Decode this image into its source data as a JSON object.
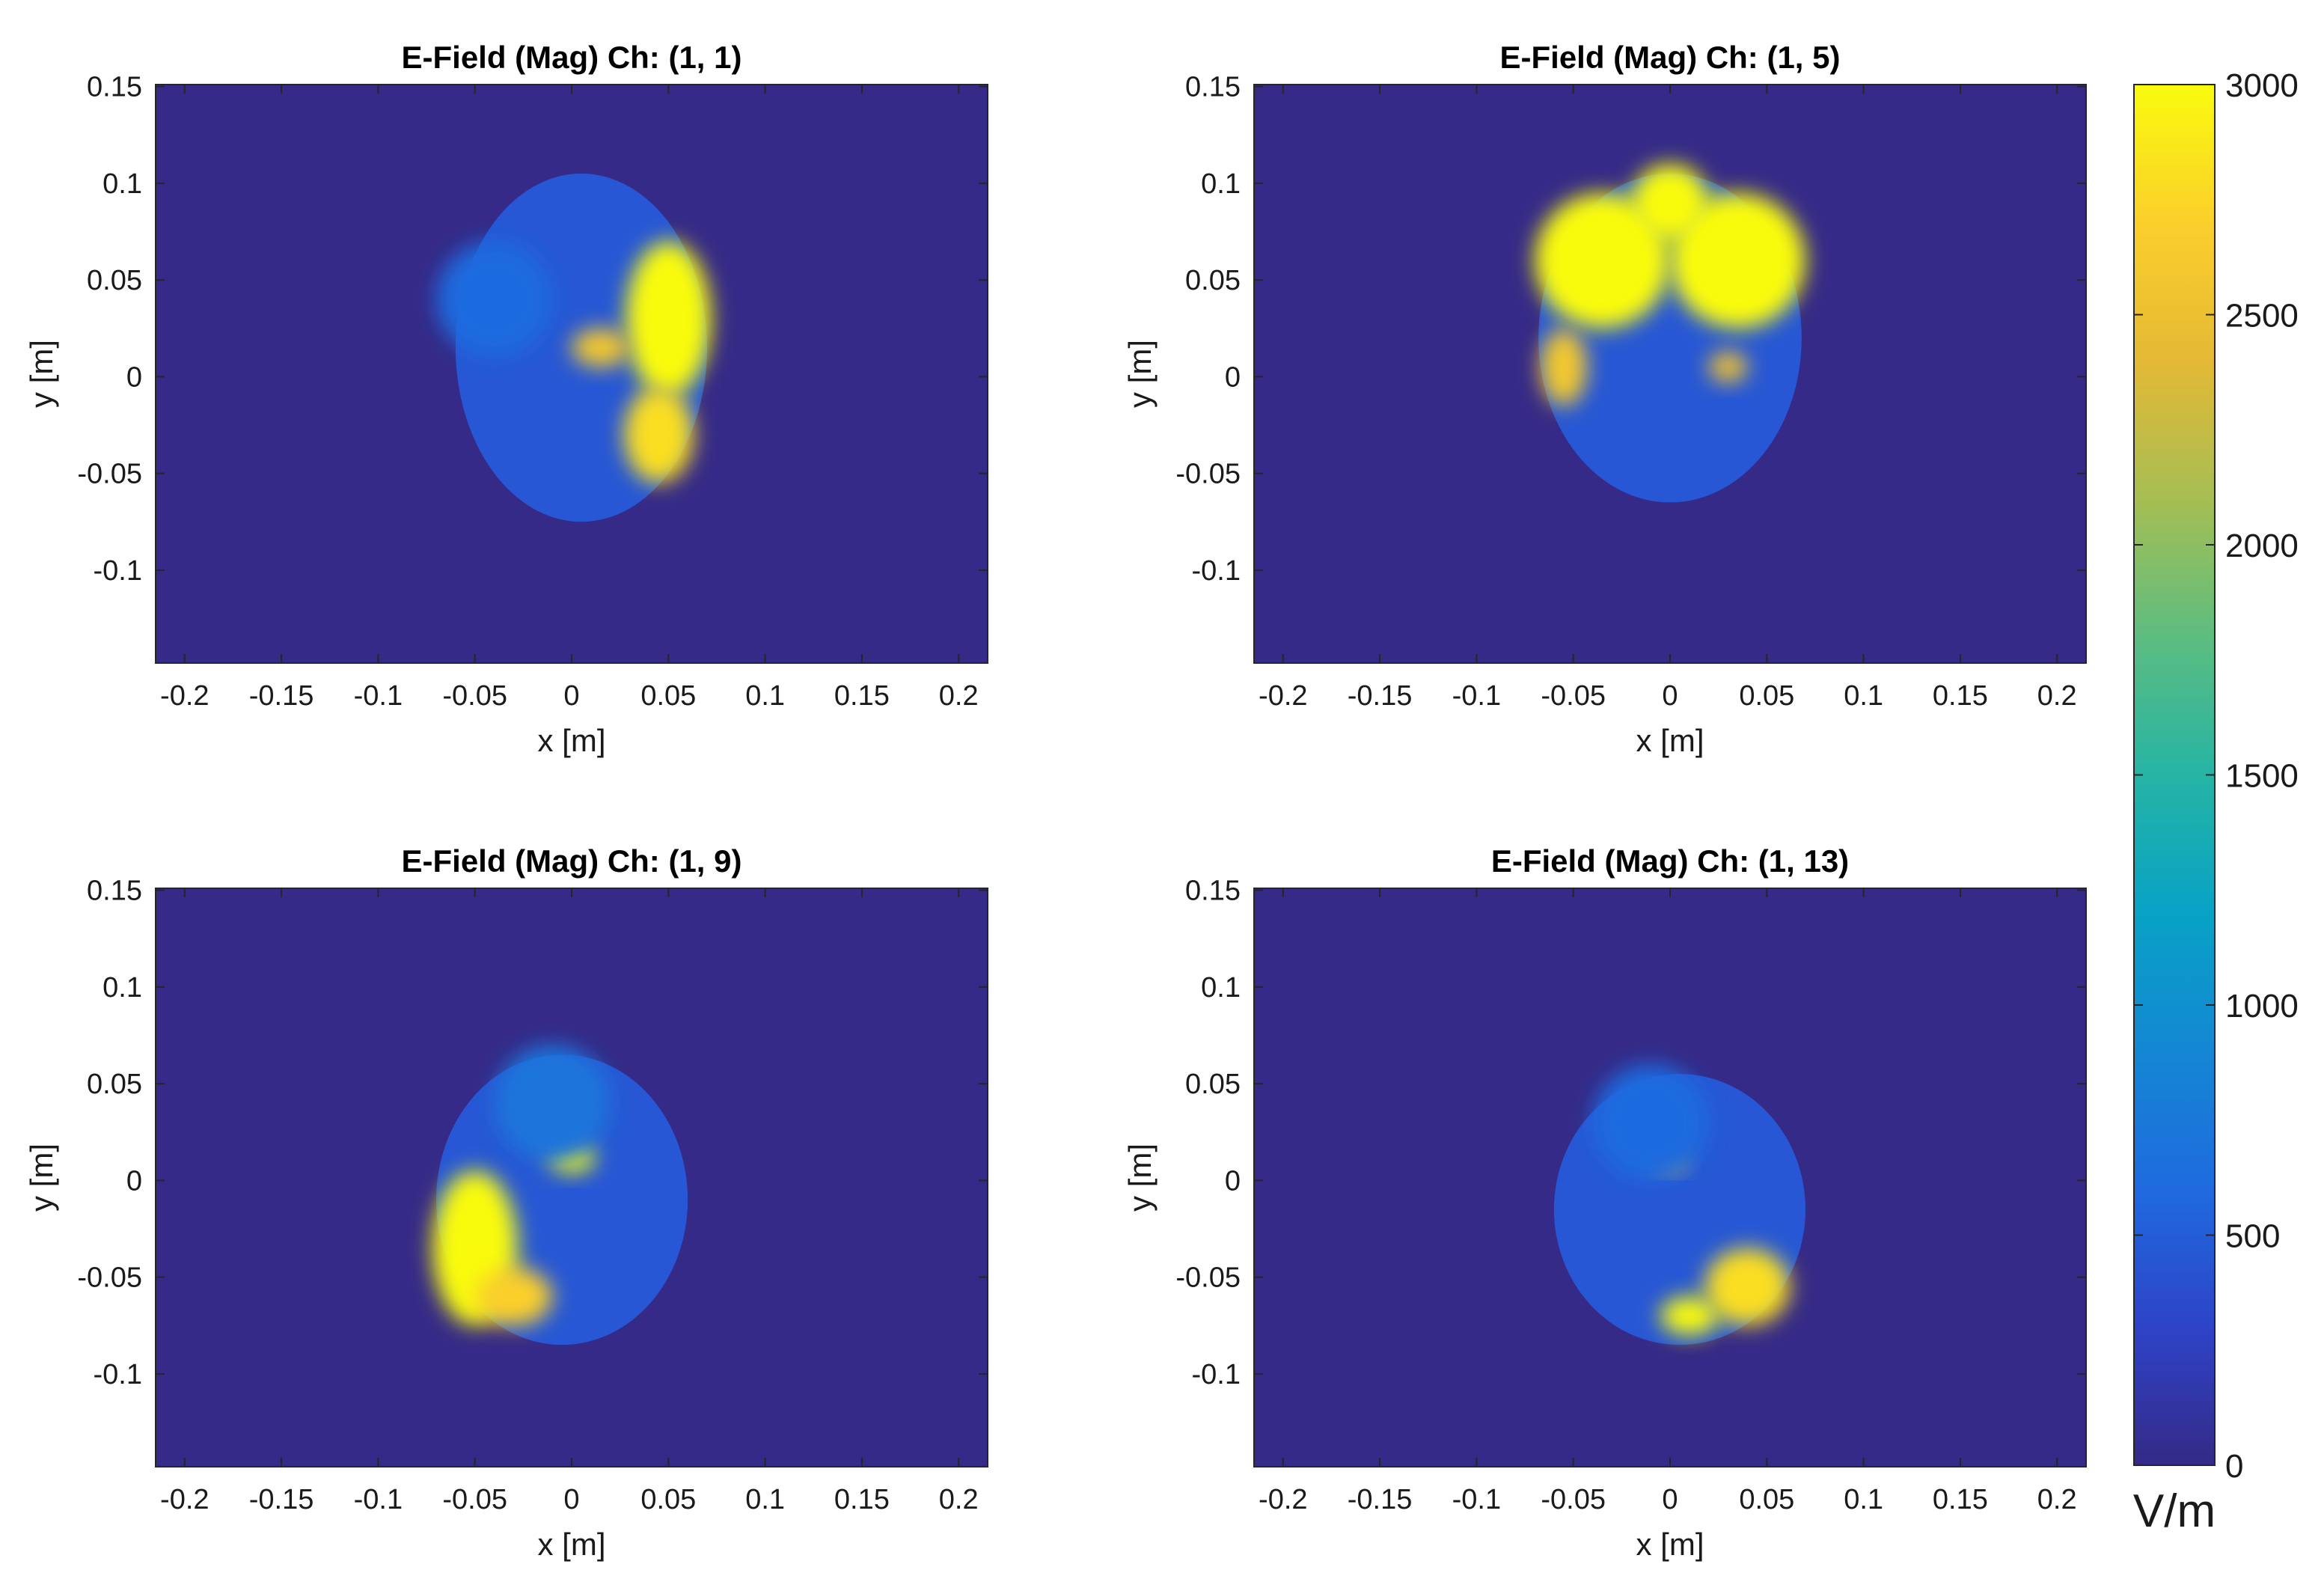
{
  "chart_data": {
    "type": "heatmap",
    "colormap": "parula",
    "clim": [
      0,
      3000
    ],
    "colorbar": {
      "ticks": [
        0,
        500,
        1000,
        1500,
        2000,
        2500,
        3000
      ],
      "tick_labels": [
        "0",
        "500",
        "1000",
        "1500",
        "2000",
        "2500",
        "3000"
      ],
      "unit": "V/m"
    },
    "panels": [
      {
        "title": "E-Field (Mag) Ch: (1, 1)",
        "xlabel": "x [m]",
        "ylabel": "y [m]",
        "xlim": [
          -0.215,
          0.215
        ],
        "ylim": [
          -0.148,
          0.151
        ],
        "xticks": [
          -0.2,
          -0.15,
          -0.1,
          -0.05,
          0,
          0.05,
          0.1,
          0.15,
          0.2
        ],
        "xtick_labels": [
          "-0.2",
          "-0.15",
          "-0.1",
          "-0.05",
          "0",
          "0.05",
          "0.1",
          "0.15",
          "0.2"
        ],
        "yticks": [
          -0.1,
          -0.05,
          0,
          0.05,
          0.1,
          0.15
        ],
        "ytick_labels": [
          "-0.1",
          "-0.05",
          "0",
          "0.05",
          "0.1",
          "0.15"
        ],
        "background_value": 0,
        "region": {
          "cx": 0.005,
          "cy": 0.015,
          "rx": 0.065,
          "ry": 0.09
        },
        "hotspots": [
          {
            "x": 0.05,
            "y": 0.03,
            "sx": 0.022,
            "sy": 0.04,
            "v": 3000
          },
          {
            "x": 0.045,
            "y": -0.03,
            "sx": 0.018,
            "sy": 0.025,
            "v": 2800
          },
          {
            "x": 0.015,
            "y": 0.015,
            "sx": 0.015,
            "sy": 0.01,
            "v": 2600
          },
          {
            "x": -0.04,
            "y": 0.04,
            "sx": 0.03,
            "sy": 0.03,
            "v": 600
          }
        ]
      },
      {
        "title": "E-Field (Mag) Ch: (1, 5)",
        "xlabel": "x [m]",
        "ylabel": "y [m]",
        "xlim": [
          -0.215,
          0.215
        ],
        "ylim": [
          -0.148,
          0.151
        ],
        "xticks": [
          -0.2,
          -0.15,
          -0.1,
          -0.05,
          0,
          0.05,
          0.1,
          0.15,
          0.2
        ],
        "xtick_labels": [
          "-0.2",
          "-0.15",
          "-0.1",
          "-0.05",
          "0",
          "0.05",
          "0.1",
          "0.15",
          "0.2"
        ],
        "yticks": [
          -0.1,
          -0.05,
          0,
          0.05,
          0.1,
          0.15
        ],
        "ytick_labels": [
          "-0.1",
          "-0.05",
          "0",
          "0.05",
          "0.1",
          "0.15"
        ],
        "background_value": 0,
        "region": {
          "cx": 0.0,
          "cy": 0.02,
          "rx": 0.068,
          "ry": 0.085
        },
        "hotspots": [
          {
            "x": -0.035,
            "y": 0.06,
            "sx": 0.035,
            "sy": 0.035,
            "v": 3000
          },
          {
            "x": 0.035,
            "y": 0.06,
            "sx": 0.035,
            "sy": 0.035,
            "v": 3000
          },
          {
            "x": 0.0,
            "y": 0.09,
            "sx": 0.02,
            "sy": 0.02,
            "v": 3000
          },
          {
            "x": -0.055,
            "y": 0.005,
            "sx": 0.012,
            "sy": 0.02,
            "v": 2600
          },
          {
            "x": 0.03,
            "y": 0.005,
            "sx": 0.01,
            "sy": 0.008,
            "v": 2500
          }
        ]
      },
      {
        "title": "E-Field (Mag) Ch: (1, 9)",
        "xlabel": "x [m]",
        "ylabel": "y [m]",
        "xlim": [
          -0.215,
          0.215
        ],
        "ylim": [
          -0.148,
          0.151
        ],
        "xticks": [
          -0.2,
          -0.15,
          -0.1,
          -0.05,
          0,
          0.05,
          0.1,
          0.15,
          0.2
        ],
        "xtick_labels": [
          "-0.2",
          "-0.15",
          "-0.1",
          "-0.05",
          "0",
          "0.05",
          "0.1",
          "0.15",
          "0.2"
        ],
        "yticks": [
          -0.1,
          -0.05,
          0,
          0.05,
          0.1,
          0.15
        ],
        "ytick_labels": [
          "-0.1",
          "-0.05",
          "0",
          "0.05",
          "0.1",
          "0.15"
        ],
        "background_value": 0,
        "region": {
          "cx": -0.005,
          "cy": -0.01,
          "rx": 0.065,
          "ry": 0.075
        },
        "hotspots": [
          {
            "x": -0.05,
            "y": -0.035,
            "sx": 0.022,
            "sy": 0.04,
            "v": 3000
          },
          {
            "x": 0.0,
            "y": 0.012,
            "sx": 0.012,
            "sy": 0.008,
            "v": 3000
          },
          {
            "x": -0.03,
            "y": -0.06,
            "sx": 0.02,
            "sy": 0.015,
            "v": 2700
          },
          {
            "x": -0.01,
            "y": 0.04,
            "sx": 0.03,
            "sy": 0.03,
            "v": 700
          }
        ]
      },
      {
        "title": "E-Field (Mag) Ch: (1, 13)",
        "xlabel": "x [m]",
        "ylabel": "y [m]",
        "xlim": [
          -0.215,
          0.215
        ],
        "ylim": [
          -0.148,
          0.151
        ],
        "xticks": [
          -0.2,
          -0.15,
          -0.1,
          -0.05,
          0,
          0.05,
          0.1,
          0.15,
          0.2
        ],
        "xtick_labels": [
          "-0.2",
          "-0.15",
          "-0.1",
          "-0.05",
          "0",
          "0.05",
          "0.1",
          "0.15",
          "0.2"
        ],
        "yticks": [
          -0.1,
          -0.05,
          0,
          0.05,
          0.1,
          0.15
        ],
        "ytick_labels": [
          "-0.1",
          "-0.05",
          "0",
          "0.05",
          "0.1",
          "0.15"
        ],
        "background_value": 0,
        "region": {
          "cx": 0.005,
          "cy": -0.015,
          "rx": 0.065,
          "ry": 0.07
        },
        "hotspots": [
          {
            "x": 0.04,
            "y": -0.055,
            "sx": 0.022,
            "sy": 0.02,
            "v": 2800
          },
          {
            "x": 0.01,
            "y": -0.07,
            "sx": 0.015,
            "sy": 0.01,
            "v": 3000
          },
          {
            "x": 0.0,
            "y": 0.01,
            "sx": 0.008,
            "sy": 0.005,
            "v": 2600
          },
          {
            "x": -0.01,
            "y": 0.03,
            "sx": 0.03,
            "sy": 0.03,
            "v": 600
          }
        ]
      }
    ]
  }
}
